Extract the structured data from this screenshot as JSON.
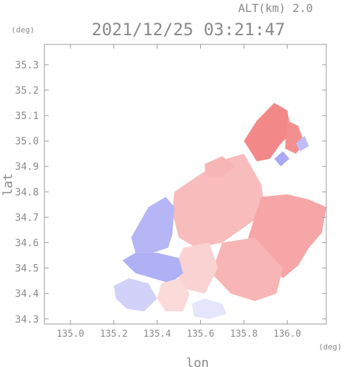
{
  "chart_data": {
    "type": "heatmap",
    "altitude_label": "ALT(km) 2.0",
    "timestamp": "2021/12/25 03:21:47",
    "xlabel": "lon",
    "ylabel": "lat",
    "x_unit": "(deg)",
    "y_unit": "(deg)",
    "xlim": [
      134.88,
      136.18
    ],
    "ylim": [
      34.28,
      35.38
    ],
    "x_ticks": [
      135.0,
      135.2,
      135.4,
      135.6,
      135.8,
      136.0
    ],
    "x_tick_labels": [
      "135.0",
      "135.2",
      "135.4",
      "135.6",
      "135.8",
      "136.0"
    ],
    "y_ticks": [
      34.3,
      34.4,
      34.5,
      34.6,
      34.7,
      34.8,
      34.9,
      35.0,
      35.1,
      35.2,
      35.3
    ],
    "y_tick_labels": [
      "34.3",
      "34.4",
      "34.5",
      "34.6",
      "34.7",
      "34.8",
      "34.9",
      "35.0",
      "35.1",
      "35.2",
      "35.3"
    ],
    "colors": {
      "positive": "#f06a6a",
      "negative": "#7b7bef",
      "zero": "#ffffff",
      "frame": "#9a9a9a"
    },
    "regions": [
      {
        "sign": "positive",
        "intensity": 0.45,
        "points": [
          [
            135.48,
            34.8
          ],
          [
            135.6,
            34.87
          ],
          [
            135.72,
            34.93
          ],
          [
            135.8,
            34.95
          ],
          [
            135.88,
            34.83
          ],
          [
            135.9,
            34.72
          ],
          [
            135.8,
            34.66
          ],
          [
            135.7,
            34.6
          ],
          [
            135.58,
            34.58
          ],
          [
            135.5,
            34.62
          ],
          [
            135.47,
            34.72
          ]
        ]
      },
      {
        "sign": "positive",
        "intensity": 0.8,
        "points": [
          [
            135.8,
            35.0
          ],
          [
            135.86,
            35.08
          ],
          [
            135.94,
            35.15
          ],
          [
            136.0,
            35.12
          ],
          [
            136.02,
            35.03
          ],
          [
            135.97,
            34.99
          ],
          [
            135.92,
            34.93
          ],
          [
            135.86,
            34.92
          ]
        ]
      },
      {
        "sign": "positive",
        "intensity": 0.75,
        "points": [
          [
            136.0,
            35.08
          ],
          [
            136.05,
            35.06
          ],
          [
            136.08,
            34.99
          ],
          [
            136.04,
            34.95
          ],
          [
            135.99,
            34.97
          ]
        ]
      },
      {
        "sign": "positive",
        "intensity": 0.6,
        "points": [
          [
            135.88,
            34.78
          ],
          [
            136.0,
            34.79
          ],
          [
            136.1,
            34.77
          ],
          [
            136.18,
            34.74
          ],
          [
            136.16,
            34.64
          ],
          [
            136.1,
            34.58
          ],
          [
            136.05,
            34.51
          ],
          [
            135.98,
            34.46
          ],
          [
            135.88,
            34.55
          ],
          [
            135.82,
            34.62
          ]
        ]
      },
      {
        "sign": "positive",
        "intensity": 0.5,
        "points": [
          [
            135.7,
            34.6
          ],
          [
            135.85,
            34.62
          ],
          [
            135.98,
            34.5
          ],
          [
            135.95,
            34.4
          ],
          [
            135.85,
            34.37
          ],
          [
            135.74,
            34.4
          ],
          [
            135.65,
            34.48
          ]
        ]
      },
      {
        "sign": "positive",
        "intensity": 0.3,
        "points": [
          [
            135.52,
            34.58
          ],
          [
            135.64,
            34.6
          ],
          [
            135.68,
            34.5
          ],
          [
            135.62,
            34.4
          ],
          [
            135.52,
            34.42
          ],
          [
            135.48,
            34.5
          ]
        ]
      },
      {
        "sign": "positive",
        "intensity": 0.5,
        "points": [
          [
            135.62,
            34.91
          ],
          [
            135.7,
            34.94
          ],
          [
            135.76,
            34.9
          ],
          [
            135.7,
            34.86
          ],
          [
            135.62,
            34.86
          ]
        ]
      },
      {
        "sign": "negative",
        "intensity": 0.55,
        "points": [
          [
            135.28,
            34.62
          ],
          [
            135.36,
            34.74
          ],
          [
            135.44,
            34.78
          ],
          [
            135.48,
            34.74
          ],
          [
            135.47,
            34.63
          ],
          [
            135.45,
            34.58
          ],
          [
            135.38,
            34.56
          ],
          [
            135.3,
            34.56
          ]
        ]
      },
      {
        "sign": "negative",
        "intensity": 0.6,
        "points": [
          [
            135.24,
            34.53
          ],
          [
            135.3,
            34.56
          ],
          [
            135.4,
            34.56
          ],
          [
            135.5,
            34.54
          ],
          [
            135.52,
            34.48
          ],
          [
            135.46,
            34.44
          ],
          [
            135.38,
            34.46
          ],
          [
            135.3,
            34.48
          ]
        ]
      },
      {
        "sign": "negative",
        "intensity": 0.35,
        "points": [
          [
            135.2,
            34.43
          ],
          [
            135.27,
            34.46
          ],
          [
            135.36,
            34.44
          ],
          [
            135.4,
            34.38
          ],
          [
            135.34,
            34.33
          ],
          [
            135.26,
            34.34
          ],
          [
            135.21,
            34.38
          ]
        ]
      },
      {
        "sign": "positive",
        "intensity": 0.25,
        "points": [
          [
            135.42,
            34.44
          ],
          [
            135.5,
            34.46
          ],
          [
            135.55,
            34.4
          ],
          [
            135.52,
            34.33
          ],
          [
            135.44,
            34.33
          ],
          [
            135.4,
            34.38
          ]
        ]
      },
      {
        "sign": "negative",
        "intensity": 0.2,
        "points": [
          [
            135.56,
            34.36
          ],
          [
            135.62,
            34.38
          ],
          [
            135.7,
            34.36
          ],
          [
            135.72,
            34.32
          ],
          [
            135.64,
            34.3
          ],
          [
            135.57,
            34.31
          ]
        ]
      },
      {
        "sign": "negative",
        "intensity": 0.65,
        "points": [
          [
            135.94,
            34.93
          ],
          [
            135.98,
            34.96
          ],
          [
            136.01,
            34.93
          ],
          [
            135.97,
            34.9
          ]
        ]
      },
      {
        "sign": "negative",
        "intensity": 0.5,
        "points": [
          [
            136.04,
            34.99
          ],
          [
            136.08,
            35.02
          ],
          [
            136.1,
            34.98
          ],
          [
            136.06,
            34.96
          ]
        ]
      }
    ]
  }
}
